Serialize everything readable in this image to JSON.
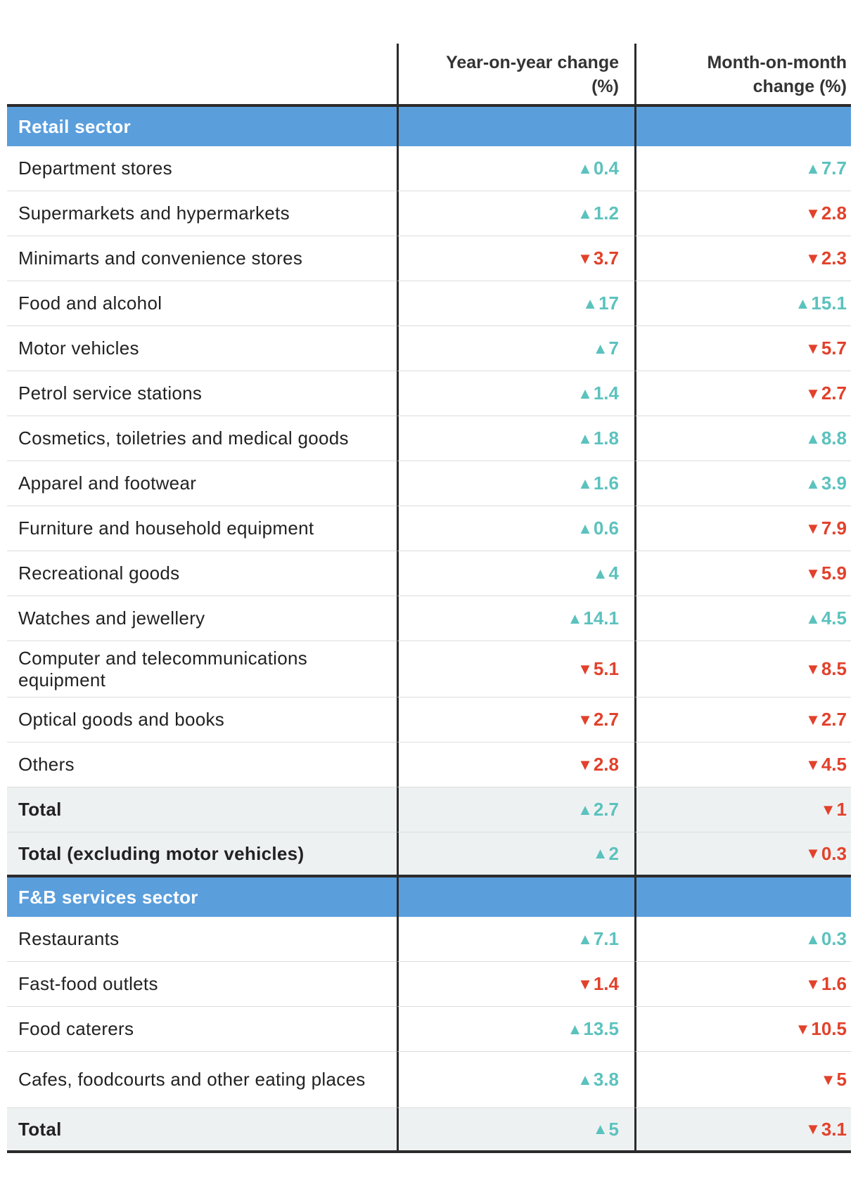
{
  "columns": {
    "year_on_year": "Year-on-year change (%)",
    "month_on_month": "Month-on-month change (%)"
  },
  "colors": {
    "up": "#5bc2be",
    "down": "#e2412b",
    "section": "#5a9edc",
    "total_bg": "#eef1f2"
  },
  "icons": {
    "up": "triangle-up-icon",
    "down": "triangle-down-icon"
  },
  "sections": [
    {
      "title": "Retail sector",
      "rows": [
        {
          "label": "Department stores",
          "yoy": "0.4",
          "yoy_dir": "up",
          "mom": "7.7",
          "mom_dir": "up"
        },
        {
          "label": "Supermarkets and hypermarkets",
          "yoy": "1.2",
          "yoy_dir": "up",
          "mom": "2.8",
          "mom_dir": "down"
        },
        {
          "label": "Minimarts and convenience stores",
          "yoy": "3.7",
          "yoy_dir": "down",
          "mom": "2.3",
          "mom_dir": "down"
        },
        {
          "label": "Food and alcohol",
          "yoy": "17",
          "yoy_dir": "up",
          "mom": "15.1",
          "mom_dir": "up"
        },
        {
          "label": "Motor vehicles",
          "yoy": "7",
          "yoy_dir": "up",
          "mom": "5.7",
          "mom_dir": "down"
        },
        {
          "label": "Petrol service stations",
          "yoy": "1.4",
          "yoy_dir": "up",
          "mom": "2.7",
          "mom_dir": "down"
        },
        {
          "label": "Cosmetics, toiletries and medical goods",
          "yoy": "1.8",
          "yoy_dir": "up",
          "mom": "8.8",
          "mom_dir": "up"
        },
        {
          "label": "Apparel and footwear",
          "yoy": "1.6",
          "yoy_dir": "up",
          "mom": "3.9",
          "mom_dir": "up"
        },
        {
          "label": "Furniture and household equipment",
          "yoy": "0.6",
          "yoy_dir": "up",
          "mom": "7.9",
          "mom_dir": "down"
        },
        {
          "label": "Recreational goods",
          "yoy": "4",
          "yoy_dir": "up",
          "mom": "5.9",
          "mom_dir": "down"
        },
        {
          "label": "Watches and jewellery",
          "yoy": "14.1",
          "yoy_dir": "up",
          "mom": "4.5",
          "mom_dir": "up"
        },
        {
          "label": "Computer and telecommunications equipment",
          "yoy": "5.1",
          "yoy_dir": "down",
          "mom": "8.5",
          "mom_dir": "down",
          "two_line": true
        },
        {
          "label": "Optical goods and books",
          "yoy": "2.7",
          "yoy_dir": "down",
          "mom": "2.7",
          "mom_dir": "down"
        },
        {
          "label": "Others",
          "yoy": "2.8",
          "yoy_dir": "down",
          "mom": "4.5",
          "mom_dir": "down"
        }
      ],
      "totals": [
        {
          "label": "Total",
          "yoy": "2.7",
          "yoy_dir": "up",
          "mom": "1",
          "mom_dir": "down"
        },
        {
          "label": "Total (excluding motor vehicles)",
          "yoy": "2",
          "yoy_dir": "up",
          "mom": "0.3",
          "mom_dir": "down"
        }
      ]
    },
    {
      "title": "F&B services sector",
      "rows": [
        {
          "label": "Restaurants",
          "yoy": "7.1",
          "yoy_dir": "up",
          "mom": "0.3",
          "mom_dir": "up"
        },
        {
          "label": "Fast-food outlets",
          "yoy": "1.4",
          "yoy_dir": "down",
          "mom": "1.6",
          "mom_dir": "down"
        },
        {
          "label": "Food caterers",
          "yoy": "13.5",
          "yoy_dir": "up",
          "mom": "10.5",
          "mom_dir": "down"
        },
        {
          "label": "Cafes, foodcourts and other eating places",
          "yoy": "3.8",
          "yoy_dir": "up",
          "mom": "5",
          "mom_dir": "down",
          "two_line": true
        }
      ],
      "totals": [
        {
          "label": "Total",
          "yoy": "5",
          "yoy_dir": "up",
          "mom": "3.1",
          "mom_dir": "down"
        }
      ]
    }
  ]
}
